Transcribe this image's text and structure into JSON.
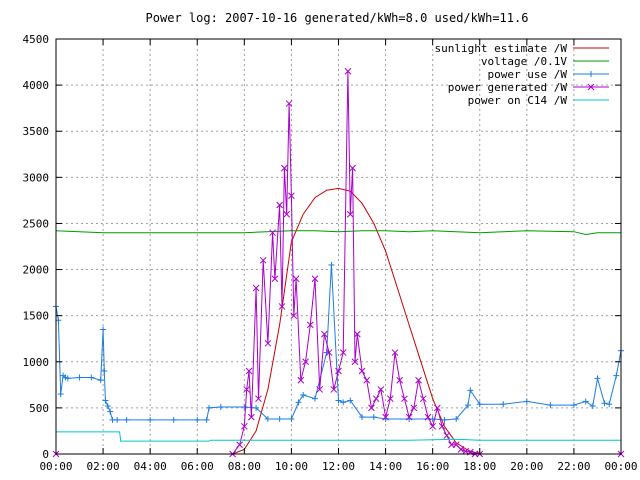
{
  "chart_data": {
    "type": "line",
    "title": "Power log: 2007-10-16 generated/kWh=8.0 used/kWh=11.6",
    "xlabel": "",
    "ylabel": "",
    "xlim": [
      0,
      24
    ],
    "ylim": [
      0,
      4500
    ],
    "grid": true,
    "legend_position": "top-right",
    "x_tick_labels": [
      "00:00",
      "02:00",
      "04:00",
      "06:00",
      "08:00",
      "10:00",
      "12:00",
      "14:00",
      "16:00",
      "18:00",
      "20:00",
      "22:00",
      "00:00"
    ],
    "x_tick_hours": [
      0,
      2,
      4,
      6,
      8,
      10,
      12,
      14,
      16,
      18,
      20,
      22,
      24
    ],
    "y_ticks": [
      0,
      500,
      1000,
      1500,
      2000,
      2500,
      3000,
      3500,
      4000,
      4500
    ],
    "series": [
      {
        "name": "sunlight estimate /W",
        "color": "#cc0000",
        "marker": "none",
        "x": [
          0,
          7.5,
          8.0,
          8.5,
          9.0,
          9.5,
          10.0,
          10.5,
          11.0,
          11.5,
          12.0,
          12.5,
          13.0,
          13.5,
          14.0,
          14.5,
          15.0,
          15.5,
          16.0,
          16.5,
          17.0,
          17.5,
          18.0,
          24
        ],
        "y": [
          0,
          0,
          50,
          250,
          700,
          1400,
          2300,
          2600,
          2780,
          2860,
          2880,
          2850,
          2720,
          2500,
          2200,
          1800,
          1400,
          1000,
          600,
          300,
          120,
          40,
          0,
          0
        ]
      },
      {
        "name": "voltage /0.1V",
        "color": "#009900",
        "marker": "none",
        "x": [
          0,
          2,
          4,
          6,
          8,
          10,
          11,
          12,
          13,
          14,
          15,
          16,
          18,
          20,
          22,
          22.5,
          23,
          24
        ],
        "y": [
          2420,
          2400,
          2400,
          2400,
          2400,
          2420,
          2420,
          2410,
          2420,
          2420,
          2410,
          2420,
          2400,
          2420,
          2410,
          2380,
          2400,
          2400
        ]
      },
      {
        "name": "power use /W",
        "color": "#1e7de0",
        "marker": "plus",
        "x": [
          0,
          0.1,
          0.2,
          0.3,
          0.4,
          0.5,
          1.0,
          1.5,
          1.9,
          2.0,
          2.05,
          2.1,
          2.2,
          2.3,
          2.4,
          2.6,
          3.0,
          4.0,
          5.0,
          6.0,
          6.4,
          6.5,
          7.0,
          8.0,
          8.5,
          9.0,
          9.5,
          10.0,
          10.3,
          10.5,
          11.0,
          11.5,
          11.7,
          12.0,
          12.2,
          12.5,
          13.0,
          13.5,
          14.0,
          15.0,
          16.0,
          16.5,
          17.0,
          17.5,
          17.6,
          18.0,
          19.0,
          20.0,
          21.0,
          22.0,
          22.5,
          22.8,
          23.0,
          23.3,
          23.5,
          23.8,
          24.0
        ],
        "y": [
          1600,
          1450,
          650,
          850,
          830,
          820,
          830,
          830,
          800,
          1350,
          900,
          580,
          520,
          460,
          370,
          370,
          370,
          370,
          370,
          370,
          370,
          500,
          510,
          510,
          500,
          380,
          380,
          380,
          560,
          640,
          600,
          1100,
          2050,
          580,
          560,
          580,
          400,
          400,
          380,
          380,
          380,
          370,
          380,
          530,
          690,
          540,
          540,
          570,
          530,
          530,
          570,
          520,
          820,
          550,
          540,
          850,
          1120
        ]
      },
      {
        "name": "power generated /W",
        "color": "#aa00cc",
        "marker": "cross",
        "x": [
          0,
          7.5,
          7.8,
          8.0,
          8.1,
          8.2,
          8.3,
          8.5,
          8.6,
          8.8,
          9.0,
          9.2,
          9.3,
          9.5,
          9.6,
          9.7,
          9.8,
          9.9,
          10.0,
          10.1,
          10.2,
          10.4,
          10.6,
          10.8,
          11.0,
          11.2,
          11.4,
          11.6,
          11.8,
          12.0,
          12.2,
          12.4,
          12.5,
          12.6,
          12.7,
          12.8,
          13.0,
          13.2,
          13.4,
          13.6,
          13.8,
          14.0,
          14.2,
          14.4,
          14.6,
          14.8,
          15.0,
          15.2,
          15.4,
          15.6,
          15.8,
          16.0,
          16.2,
          16.4,
          16.6,
          16.8,
          17.0,
          17.2,
          17.4,
          17.6,
          17.8,
          18.0,
          24
        ],
        "y": [
          0,
          0,
          100,
          300,
          700,
          900,
          400,
          1800,
          600,
          2100,
          1200,
          2400,
          1900,
          2700,
          1600,
          3100,
          2600,
          3800,
          2800,
          1500,
          1900,
          800,
          1000,
          1400,
          1900,
          700,
          1300,
          1100,
          700,
          900,
          1100,
          4150,
          2600,
          3100,
          1000,
          1300,
          900,
          800,
          500,
          600,
          700,
          400,
          600,
          1100,
          800,
          600,
          400,
          500,
          800,
          600,
          400,
          300,
          500,
          300,
          200,
          100,
          100,
          50,
          30,
          20,
          0,
          0,
          0
        ]
      },
      {
        "name": "power on C14 /W",
        "color": "#00c8c8",
        "marker": "none",
        "x": [
          0,
          2.7,
          2.75,
          6.5,
          6.55,
          12.0,
          13.0,
          15.0,
          17.0,
          18.0,
          20.0,
          22.0,
          24.0
        ],
        "y": [
          240,
          240,
          140,
          140,
          150,
          150,
          150,
          150,
          160,
          150,
          150,
          150,
          150
        ]
      }
    ]
  }
}
